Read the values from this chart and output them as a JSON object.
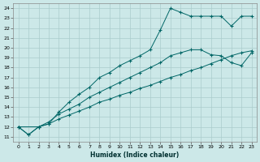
{
  "xlabel": "Humidex (Indice chaleur)",
  "background_color": "#cce8e8",
  "grid_color": "#aacccc",
  "line_color": "#006666",
  "xlim": [
    -0.5,
    23.5
  ],
  "ylim": [
    10.5,
    24.5
  ],
  "xticks": [
    0,
    1,
    2,
    3,
    4,
    5,
    6,
    7,
    8,
    9,
    10,
    11,
    12,
    13,
    14,
    15,
    16,
    17,
    18,
    19,
    20,
    21,
    22,
    23
  ],
  "yticks": [
    11,
    12,
    13,
    14,
    15,
    16,
    17,
    18,
    19,
    20,
    21,
    22,
    23,
    24
  ],
  "series": [
    {
      "x": [
        0,
        1,
        2,
        3,
        4,
        5,
        6,
        7,
        8,
        9,
        10,
        11,
        12,
        13,
        14,
        15,
        16,
        17,
        18,
        19,
        20,
        21,
        22,
        23
      ],
      "y": [
        12,
        11.2,
        12.0,
        12.3,
        12.8,
        13.2,
        13.6,
        14.0,
        14.5,
        14.8,
        15.2,
        15.5,
        15.9,
        16.2,
        16.6,
        17.0,
        17.3,
        17.7,
        18.0,
        18.4,
        18.8,
        19.2,
        19.5,
        19.7
      ]
    },
    {
      "x": [
        0,
        2,
        3,
        4,
        5,
        6,
        7,
        8,
        9,
        10,
        11,
        12,
        13,
        14,
        15,
        16,
        17,
        18,
        19,
        20,
        21,
        22,
        23
      ],
      "y": [
        12,
        12.0,
        12.5,
        13.3,
        13.8,
        14.3,
        15.0,
        15.5,
        16.0,
        16.5,
        17.0,
        17.5,
        18.0,
        18.5,
        19.2,
        19.5,
        19.8,
        19.8,
        19.3,
        19.2,
        18.5,
        18.2,
        19.5
      ]
    },
    {
      "x": [
        0,
        1,
        2,
        3,
        4,
        5,
        6,
        7,
        8,
        9,
        10,
        11,
        12,
        13,
        14,
        15,
        16,
        17,
        18,
        19,
        20,
        21,
        22,
        23
      ],
      "y": [
        12,
        11.2,
        12.0,
        12.3,
        13.5,
        14.5,
        15.3,
        16.0,
        17.0,
        17.5,
        18.2,
        18.7,
        19.2,
        19.8,
        21.8,
        24.0,
        23.6,
        23.2,
        23.2,
        23.2,
        23.2,
        22.2,
        23.2,
        23.2
      ]
    }
  ]
}
